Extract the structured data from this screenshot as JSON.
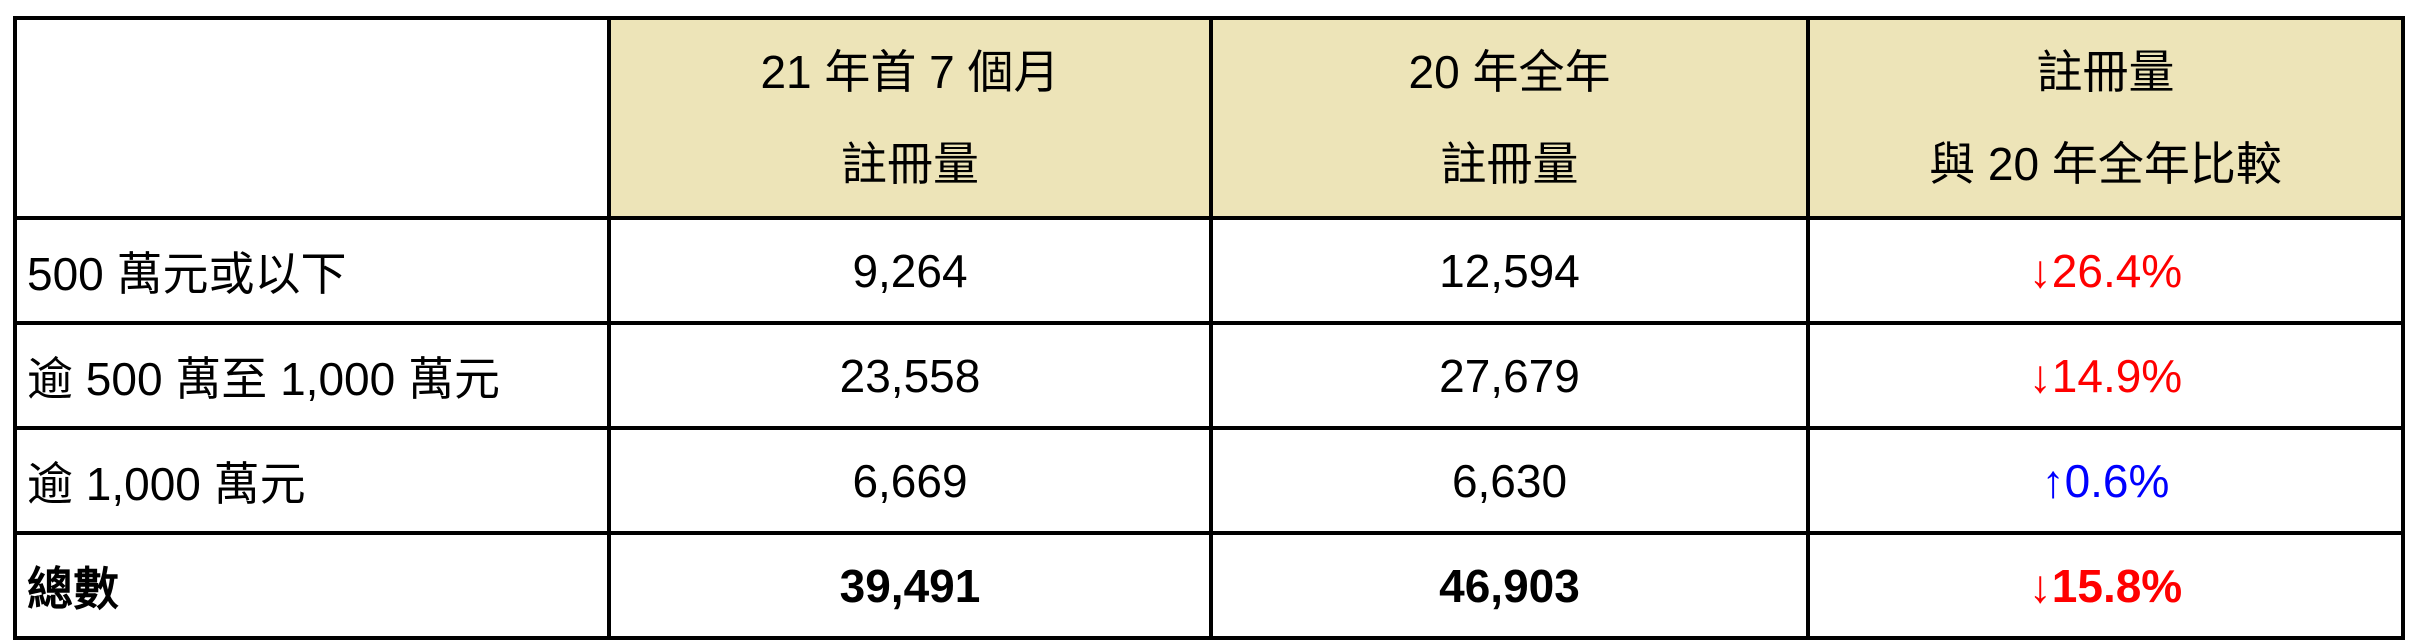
{
  "header": {
    "col1": [
      "21 年首 7 個月",
      "註冊量"
    ],
    "col2": [
      "20 年全年",
      "註冊量"
    ],
    "col3": [
      "註冊量",
      "與 20 年全年比較"
    ]
  },
  "rows": [
    {
      "label": "500 萬元或以下",
      "v2021": "9,264",
      "v2020": "12,594",
      "change": "↓26.4%",
      "direction": "down"
    },
    {
      "label": "逾 500 萬至 1,000 萬元",
      "v2021": "23,558",
      "v2020": "27,679",
      "change": "↓14.9%",
      "direction": "down"
    },
    {
      "label": "逾 1,000 萬元",
      "v2021": "6,669",
      "v2020": "6,630",
      "change": "↑0.6%",
      "direction": "up"
    },
    {
      "label": "總數",
      "v2021": "39,491",
      "v2020": "46,903",
      "change": "↓15.8%",
      "direction": "down"
    }
  ],
  "colors": {
    "header_bg": "#EDE4B8",
    "down": "#FF0000",
    "up": "#0000FF"
  }
}
